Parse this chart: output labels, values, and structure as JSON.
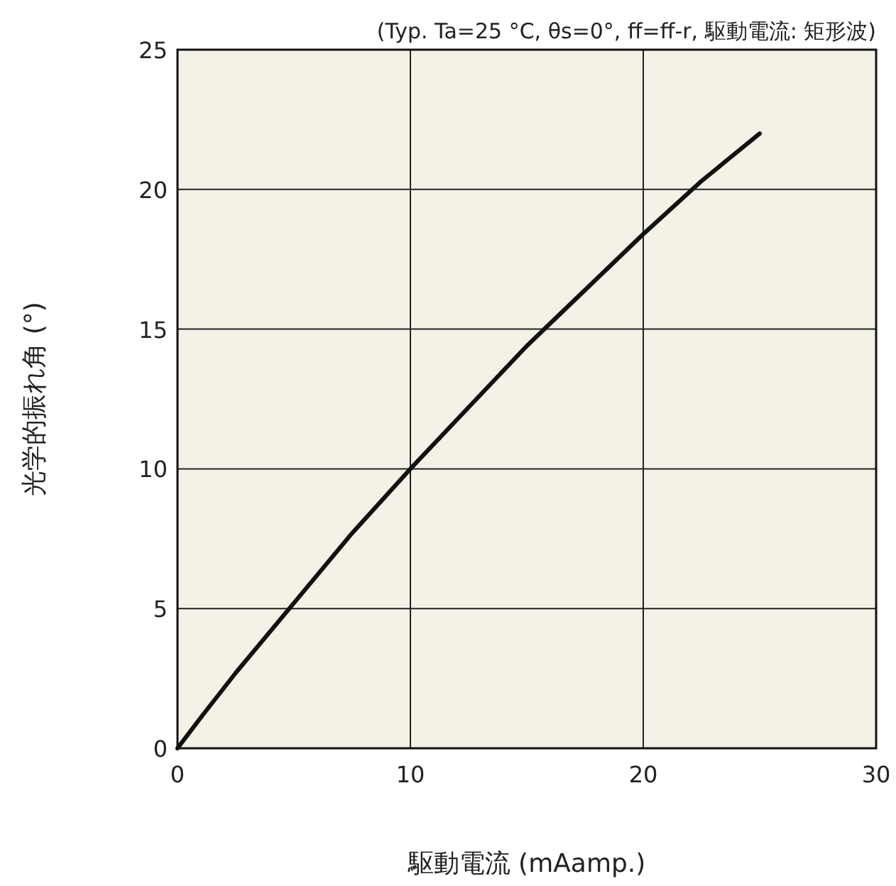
{
  "chart_data": {
    "type": "line",
    "subtitle": "(Typ. Ta=25 °C, θs=0°, ff=ff-r, 駆動電流: 矩形波)",
    "xlabel": "駆動電流 (mAamp.)",
    "ylabel": "光学的振れ角 (°)",
    "x": [
      0,
      1,
      2.5,
      5,
      7.5,
      10,
      12.5,
      15,
      17.5,
      20,
      22.5,
      25
    ],
    "series": [
      {
        "color": "#111111",
        "values": [
          0,
          1.1,
          2.7,
          5.2,
          7.7,
          10,
          12.2,
          14.4,
          16.4,
          18.4,
          20.3,
          22
        ]
      }
    ],
    "xlim": [
      0,
      30
    ],
    "ylim": [
      0,
      25
    ],
    "xticks": [
      0,
      10,
      20,
      30
    ],
    "yticks": [
      0,
      5,
      10,
      15,
      20,
      25
    ],
    "grid": true,
    "marker": "none",
    "line_style": "solid"
  }
}
